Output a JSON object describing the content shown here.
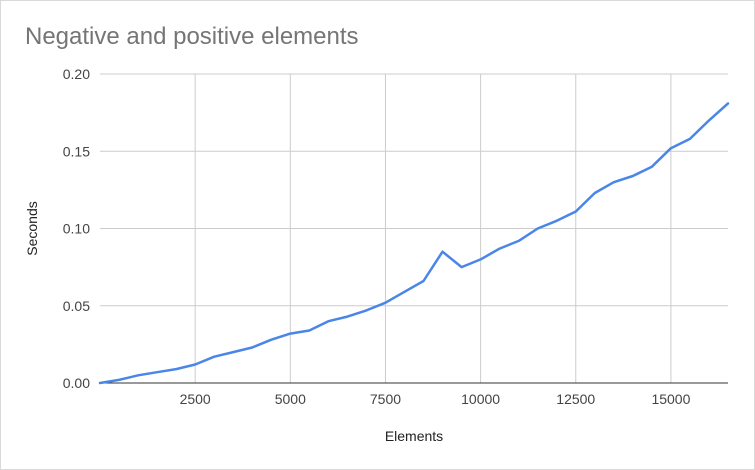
{
  "chart_data": {
    "type": "line",
    "title": "Negative and positive elements",
    "xlabel": "Elements",
    "ylabel": "Seconds",
    "xlim": [
      0,
      16500
    ],
    "ylim": [
      0,
      0.2
    ],
    "x_ticks": [
      2500,
      5000,
      7500,
      10000,
      12500,
      15000
    ],
    "x_tick_labels": [
      "2500",
      "5000",
      "7500",
      "10000",
      "12500",
      "15000"
    ],
    "y_ticks": [
      0,
      0.05,
      0.1,
      0.15,
      0.2
    ],
    "y_tick_labels": [
      "0.00",
      "0.05",
      "0.10",
      "0.15",
      "0.20"
    ],
    "grid": true,
    "legend": "none",
    "colors": {
      "series": "#4a86e8",
      "grid": "#cccccc",
      "axis": "#333333"
    },
    "series": [
      {
        "x": [
          0,
          500,
          1000,
          1500,
          2000,
          2500,
          3000,
          3500,
          4000,
          4500,
          5000,
          5500,
          6000,
          6500,
          7000,
          7500,
          8000,
          8500,
          9000,
          9500,
          10000,
          10500,
          11000,
          11500,
          12000,
          12500,
          13000,
          13500,
          14000,
          14500,
          15000,
          15500,
          16000,
          16500
        ],
        "y": [
          0.0,
          0.002,
          0.005,
          0.007,
          0.009,
          0.012,
          0.017,
          0.02,
          0.023,
          0.028,
          0.032,
          0.034,
          0.04,
          0.043,
          0.047,
          0.052,
          0.059,
          0.066,
          0.085,
          0.075,
          0.08,
          0.087,
          0.092,
          0.1,
          0.105,
          0.111,
          0.123,
          0.13,
          0.134,
          0.14,
          0.152,
          0.158,
          0.17,
          0.181
        ]
      }
    ]
  }
}
